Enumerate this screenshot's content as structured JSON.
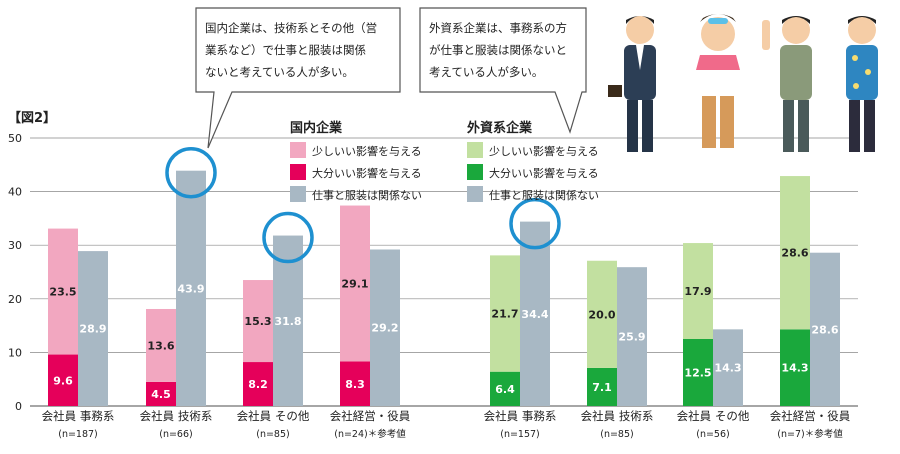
{
  "figure_label": "【図2】",
  "callouts": [
    {
      "lines": [
        "国内企業は、技術系とその他（営",
        "業系など）で仕事と服装は関係",
        "ないと考えている人が多い。"
      ]
    },
    {
      "lines": [
        "外資系企業は、事務系の方",
        "が仕事と服装は関係ないと",
        "考えている人が多い。"
      ]
    }
  ],
  "colors": {
    "domestic_small": "#f2a7c0",
    "domestic_large": "#e5005a",
    "foreign_small": "#c2e0a0",
    "foreign_large": "#1aa83c",
    "unrelated": "#a8b8c4",
    "highlight_circle": "#1e90d0",
    "gridline": "#888888"
  },
  "chart_data": [
    {
      "type": "bar",
      "group_title": "国内企業",
      "legend": [
        "少しいい影響を与える",
        "大分いい影響を与える",
        "仕事と服装は関係ない"
      ],
      "categories": [
        "会社員 事務系",
        "会社員 技術系",
        "会社員 その他",
        "会社経営・役員"
      ],
      "sample_sizes": [
        "(n=187)",
        "(n=66)",
        "(n=85)",
        "(n=24)＊参考値"
      ],
      "series": [
        {
          "name": "大分いい影響を与える",
          "values": [
            9.6,
            4.5,
            8.2,
            8.3
          ]
        },
        {
          "name": "少しいい影響を与える",
          "values": [
            23.5,
            13.6,
            15.3,
            29.1
          ]
        },
        {
          "name": "仕事と服装は関係ない",
          "values": [
            28.9,
            43.9,
            31.8,
            29.2
          ]
        }
      ],
      "highlighted_categories": [
        "会社員 技術系",
        "会社員 その他"
      ],
      "ylim": [
        0,
        50
      ],
      "yticks": [
        0,
        10,
        20,
        30,
        40,
        50
      ]
    },
    {
      "type": "bar",
      "group_title": "外資系企業",
      "legend": [
        "少しいい影響を与える",
        "大分いい影響を与える",
        "仕事と服装は関係ない"
      ],
      "categories": [
        "会社員 事務系",
        "会社員 技術系",
        "会社員 その他",
        "会社経営・役員"
      ],
      "sample_sizes": [
        "(n=157)",
        "(n=85)",
        "(n=56)",
        "(n=7)＊参考値"
      ],
      "series": [
        {
          "name": "大分いい影響を与える",
          "values": [
            6.4,
            7.1,
            12.5,
            14.3
          ]
        },
        {
          "name": "少しいい影響を与える",
          "values": [
            21.7,
            20.0,
            17.9,
            28.6
          ]
        },
        {
          "name": "仕事と服装は関係ない",
          "values": [
            34.4,
            25.9,
            14.3,
            28.6
          ]
        }
      ],
      "highlighted_categories": [
        "会社員 事務系"
      ],
      "ylim": [
        0,
        50
      ],
      "yticks": [
        0,
        10,
        20,
        30,
        40,
        50
      ]
    }
  ]
}
